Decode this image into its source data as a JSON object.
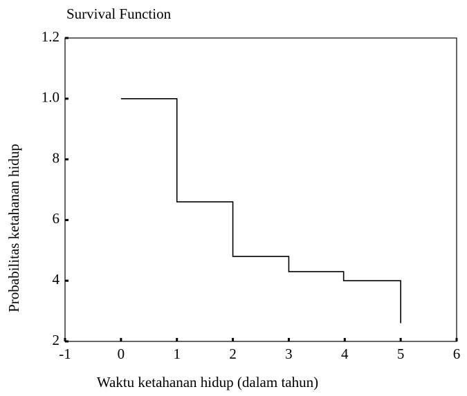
{
  "chart_data": {
    "type": "line",
    "step": true,
    "title": "Survival Function",
    "x_label": "Waktu ketahanan hidup (dalam tahun)",
    "y_label": "Probabilitas ketahanan hidup",
    "series": [
      {
        "color": "#000000",
        "x": [
          0,
          1,
          1,
          2,
          2,
          3,
          3,
          3.98,
          3.98,
          5,
          5
        ],
        "values": [
          1,
          1,
          0.66,
          0.66,
          0.48,
          0.48,
          0.43,
          0.43,
          0.4,
          0.4,
          0.26
        ]
      }
    ],
    "xlim": [
      -1,
      6
    ],
    "xticks": [
      -1,
      0,
      1,
      2,
      3,
      4,
      5,
      6
    ],
    "ylim": [
      0.2,
      1.2
    ],
    "yticks": [
      {
        "value": 0.2,
        "label": "2"
      },
      {
        "value": 0.4,
        "label": "4"
      },
      {
        "value": 0.6,
        "label": "6"
      },
      {
        "value": 0.8,
        "label": "8"
      },
      {
        "value": 1,
        "label": "1.0"
      },
      1.2
    ],
    "grid": false
  }
}
